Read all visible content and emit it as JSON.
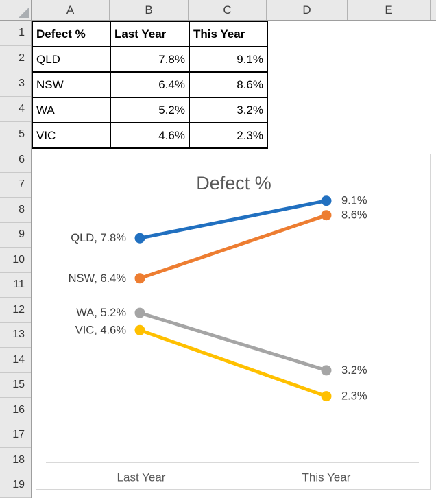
{
  "sheet": {
    "column_letters": [
      "A",
      "B",
      "C",
      "D",
      "E"
    ],
    "row_numbers": [
      "1",
      "2",
      "3",
      "4",
      "5",
      "6",
      "7",
      "8",
      "9",
      "10",
      "11",
      "12",
      "13",
      "14",
      "15",
      "16",
      "17",
      "18",
      "19"
    ]
  },
  "table": {
    "header": [
      "Defect %",
      "Last Year",
      "This Year"
    ],
    "rows": [
      [
        "QLD",
        "7.8%",
        "9.1%"
      ],
      [
        "NSW",
        "6.4%",
        "8.6%"
      ],
      [
        "WA",
        "5.2%",
        "3.2%"
      ],
      [
        "VIC",
        "4.6%",
        "2.3%"
      ]
    ]
  },
  "chart": {
    "title": "Defect %",
    "categories": [
      "Last Year",
      "This Year"
    ],
    "series": [
      {
        "name": "QLD",
        "color": "#2170c0",
        "values": [
          7.8,
          9.1
        ],
        "left_label": "QLD, 7.8%",
        "right_label": "9.1%"
      },
      {
        "name": "NSW",
        "color": "#ed7d31",
        "values": [
          6.4,
          8.6
        ],
        "left_label": "NSW, 6.4%",
        "right_label": "8.6%"
      },
      {
        "name": "WA",
        "color": "#a5a5a5",
        "values": [
          5.2,
          3.2
        ],
        "left_label": "WA, 5.2%",
        "right_label": "3.2%"
      },
      {
        "name": "VIC",
        "color": "#ffc000",
        "values": [
          4.6,
          2.3
        ],
        "left_label": "VIC, 4.6%",
        "right_label": "2.3%"
      }
    ],
    "title_color": "#595959",
    "axis_label_color": "#595959",
    "data_label_color": "#404040",
    "axis_line_color": "#d9d9d9"
  },
  "chart_data": {
    "type": "line",
    "subtype": "slope-chart",
    "title": "Defect %",
    "categories": [
      "Last Year",
      "This Year"
    ],
    "series": [
      {
        "name": "QLD",
        "values": [
          7.8,
          9.1
        ]
      },
      {
        "name": "NSW",
        "values": [
          6.4,
          8.6
        ]
      },
      {
        "name": "WA",
        "values": [
          5.2,
          3.2
        ]
      },
      {
        "name": "VIC",
        "values": [
          4.6,
          2.3
        ]
      }
    ],
    "unit": "%",
    "xlabel": "",
    "ylabel": "",
    "ylim": [
      0,
      10
    ],
    "grid": false,
    "legend": "none",
    "annotations": [
      "QLD, 7.8%",
      "NSW, 6.4%",
      "WA, 5.2%",
      "VIC, 4.6%",
      "9.1%",
      "8.6%",
      "3.2%",
      "2.3%"
    ]
  }
}
